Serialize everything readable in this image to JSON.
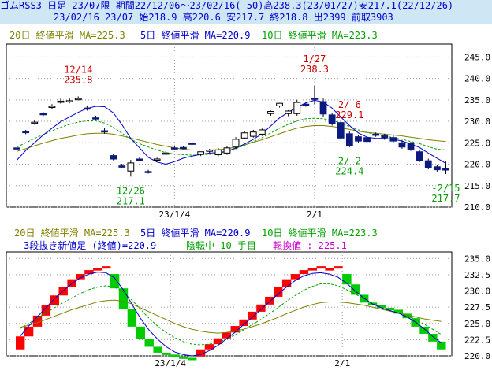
{
  "header": {
    "line1": "ゴムRSS3 日足 23/07限 期間22/12/06～23/02/16( 50)高238.3(23/01/27)安217.1(22/12/26)",
    "line2": "23/02/16 23/07 始218.9 高220.6 安217.7 終218.8 出2399 前取3903"
  },
  "colors": {
    "accent_blue": "#0000cc",
    "candle_up": "#ffffff",
    "candle_down": "#0a1a80",
    "ma20": "#808000",
    "ma5": "#0000cc",
    "ma10": "#00a000",
    "brick_up": "#ff0000",
    "brick_down": "#00cc00",
    "label_red": "#cc0000",
    "label_green": "#009900"
  },
  "chart_data": [
    {
      "type": "candlestick",
      "legend": {
        "ma20": "20日 終値平滑 MA=225.3",
        "ma5": "5日 終値平滑 MA=220.9",
        "ma10": "10日 終値平滑 MA=223.3"
      },
      "ylim": [
        210,
        248
      ],
      "yticks": [
        "245.0",
        "240.0",
        "235.0",
        "230.0",
        "225.0",
        "220.0",
        "215.0",
        "210.0"
      ],
      "xtick_labels": [
        {
          "index": 18,
          "label": "23/1/4"
        },
        {
          "index": 34,
          "label": "2/1"
        }
      ],
      "candles": [
        {
          "o": 223.8,
          "h": 224.2,
          "c": 223.6,
          "l": 223.4
        },
        {
          "o": 227.6,
          "h": 228.0,
          "c": 227.4,
          "l": 227.0
        },
        {
          "o": 229.6,
          "h": 230.2,
          "c": 229.8,
          "l": 229.2
        },
        {
          "o": 231.8,
          "h": 232.2,
          "c": 231.6,
          "l": 231.2
        },
        {
          "o": 233.3,
          "h": 234.0,
          "c": 233.5,
          "l": 232.9
        },
        {
          "o": 234.6,
          "h": 235.3,
          "c": 234.7,
          "l": 234.1
        },
        {
          "o": 234.6,
          "h": 235.4,
          "c": 234.8,
          "l": 234.2
        },
        {
          "o": 235.2,
          "h": 235.8,
          "c": 235.3,
          "l": 234.9
        },
        {
          "o": 233.1,
          "h": 233.7,
          "c": 232.9,
          "l": 232.5
        },
        {
          "o": 230.8,
          "h": 231.3,
          "c": 230.6,
          "l": 230.2
        },
        {
          "o": 227.8,
          "h": 228.4,
          "c": 227.5,
          "l": 227.1
        },
        {
          "o": 222.0,
          "h": 222.3,
          "c": 221.2,
          "l": 220.9
        },
        {
          "o": 219.6,
          "h": 220.1,
          "c": 219.3,
          "l": 219.0
        },
        {
          "o": 218.4,
          "h": 221.0,
          "c": 220.3,
          "l": 217.1
        },
        {
          "o": 221.2,
          "h": 221.6,
          "c": 221.0,
          "l": 220.7
        },
        {
          "o": 218.3,
          "h": 218.7,
          "c": 218.1,
          "l": 217.8
        },
        {
          "o": 221.0,
          "h": 221.5,
          "c": 221.2,
          "l": 220.6
        },
        {
          "o": 222.5,
          "h": 223.0,
          "c": 222.6,
          "l": 222.2
        },
        {
          "o": 223.8,
          "h": 224.2,
          "c": 223.7,
          "l": 223.3
        },
        {
          "o": 223.9,
          "h": 224.3,
          "c": 223.8,
          "l": 223.5
        },
        {
          "o": 224.9,
          "h": 225.3,
          "c": 224.8,
          "l": 224.4
        },
        {
          "o": 222.3,
          "h": 222.8,
          "c": 222.9,
          "l": 221.9
        },
        {
          "o": 223.0,
          "h": 223.6,
          "c": 223.3,
          "l": 222.6
        },
        {
          "o": 222.2,
          "h": 223.8,
          "c": 223.3,
          "l": 221.8
        },
        {
          "o": 222.6,
          "h": 224.2,
          "c": 223.8,
          "l": 222.2
        },
        {
          "o": 224.0,
          "h": 226.3,
          "c": 225.8,
          "l": 223.5
        },
        {
          "o": 226.1,
          "h": 227.7,
          "c": 227.3,
          "l": 225.8
        },
        {
          "o": 226.5,
          "h": 228.0,
          "c": 227.5,
          "l": 226.2
        },
        {
          "o": 227.0,
          "h": 228.3,
          "c": 228.0,
          "l": 226.6
        },
        {
          "o": 231.8,
          "h": 232.5,
          "c": 232.3,
          "l": 231.3
        },
        {
          "o": 233.6,
          "h": 234.3,
          "c": 234.2,
          "l": 233.2
        },
        {
          "o": 231.8,
          "h": 232.6,
          "c": 232.4,
          "l": 231.2
        },
        {
          "o": 231.8,
          "h": 235.0,
          "c": 234.4,
          "l": 231.3
        },
        {
          "o": 234.0,
          "h": 234.3,
          "c": 233.8,
          "l": 233.4
        },
        {
          "o": 235.4,
          "h": 238.3,
          "c": 235.1,
          "l": 234.0
        },
        {
          "o": 234.6,
          "h": 235.3,
          "c": 231.7,
          "l": 231.1
        },
        {
          "o": 231.5,
          "h": 232.0,
          "c": 229.5,
          "l": 229.0
        },
        {
          "o": 229.7,
          "h": 230.2,
          "c": 226.1,
          "l": 225.7
        },
        {
          "o": 227.1,
          "h": 227.6,
          "c": 224.4,
          "l": 224.0
        },
        {
          "o": 226.4,
          "h": 226.9,
          "c": 225.4,
          "l": 224.9
        },
        {
          "o": 226.2,
          "h": 226.6,
          "c": 225.3,
          "l": 224.8
        },
        {
          "o": 227.0,
          "h": 227.4,
          "c": 226.8,
          "l": 226.4
        },
        {
          "o": 226.6,
          "h": 227.1,
          "c": 226.2,
          "l": 225.7
        },
        {
          "o": 226.2,
          "h": 226.7,
          "c": 225.4,
          "l": 225.0
        },
        {
          "o": 225.0,
          "h": 225.6,
          "c": 224.0,
          "l": 223.6
        },
        {
          "o": 224.8,
          "h": 225.2,
          "c": 223.5,
          "l": 223.1
        },
        {
          "o": 222.9,
          "h": 223.4,
          "c": 220.9,
          "l": 220.5
        },
        {
          "o": 220.8,
          "h": 221.3,
          "c": 219.2,
          "l": 218.8
        },
        {
          "o": 219.4,
          "h": 219.9,
          "c": 218.7,
          "l": 218.3
        },
        {
          "o": 218.9,
          "h": 220.6,
          "c": 218.8,
          "l": 217.7
        }
      ],
      "ma5": [
        221.0,
        223.2,
        225.0,
        226.8,
        228.4,
        229.9,
        231.0,
        232.1,
        233.0,
        233.5,
        233.4,
        232.0,
        229.2,
        226.0,
        223.8,
        221.6,
        220.5,
        220.0,
        220.6,
        221.4,
        221.9,
        222.3,
        222.6,
        222.7,
        223.0,
        223.8,
        224.7,
        225.8,
        227.1,
        228.9,
        230.8,
        232.1,
        233.3,
        234.3,
        234.9,
        234.5,
        233.1,
        231.0,
        229.0,
        227.3,
        226.3,
        226.0,
        226.0,
        225.8,
        225.4,
        224.7,
        223.9,
        222.6,
        221.4,
        220.2
      ],
      "ma10": [
        224.0,
        225.0,
        226.0,
        226.9,
        227.8,
        228.6,
        229.3,
        229.8,
        230.1,
        230.1,
        229.6,
        228.6,
        227.2,
        225.8,
        224.8,
        224.0,
        223.3,
        222.7,
        222.4,
        222.2,
        222.1,
        222.2,
        222.3,
        222.5,
        222.9,
        223.6,
        224.4,
        225.3,
        226.2,
        227.3,
        228.4,
        229.3,
        230.1,
        230.6,
        230.7,
        230.6,
        230.2,
        229.6,
        228.8,
        228.0,
        227.4,
        226.9,
        226.6,
        226.2,
        225.8,
        225.3,
        224.8,
        224.1,
        223.5,
        223.3
      ],
      "ma20": [
        223.0,
        223.6,
        224.3,
        224.9,
        225.5,
        226.0,
        226.4,
        226.8,
        227.1,
        227.2,
        227.2,
        227.0,
        226.6,
        226.1,
        225.6,
        225.1,
        224.6,
        224.2,
        223.8,
        223.5,
        223.3,
        223.3,
        223.3,
        223.4,
        223.6,
        224.0,
        224.5,
        225.1,
        225.7,
        226.4,
        227.1,
        227.8,
        228.4,
        228.8,
        229.0,
        229.0,
        228.8,
        228.5,
        228.1,
        227.7,
        227.4,
        227.2,
        227.0,
        226.8,
        226.6,
        226.3,
        226.0,
        225.7,
        225.5,
        225.3
      ],
      "annotations": [
        {
          "index": 7,
          "date": "12/14",
          "value": "235.8",
          "color": "red",
          "position": "above"
        },
        {
          "index": 34,
          "date": "1/27",
          "value": "238.3",
          "color": "red",
          "position": "above"
        },
        {
          "index": 38,
          "date": "2/ 6",
          "value": "229.1",
          "color": "red",
          "position": "above"
        },
        {
          "index": 38,
          "date": "2/ 2",
          "value": "224.4",
          "color": "green",
          "position": "below"
        },
        {
          "index": 13,
          "date": "12/26",
          "value": "217.1",
          "color": "green",
          "position": "below"
        },
        {
          "index": 49,
          "date": "-2/15",
          "value": "217.7",
          "color": "green",
          "position": "below"
        }
      ]
    },
    {
      "type": "three-line-break",
      "legend": {
        "ma20": "20日 終値平滑 MA=225.3",
        "ma5": "5日 終値平滑 MA=220.9",
        "ma10": "10日 終値平滑 MA=223.3"
      },
      "info": {
        "prefix": "3段抜き新値足 (終値)=220.9",
        "status": "陰転中 10 手目",
        "reversal": "転換値 : 225.1"
      },
      "ylim": [
        220,
        236
      ],
      "yticks": [
        "235.0",
        "232.5",
        "230.0",
        "227.5",
        "225.0",
        "222.5",
        "220.0"
      ],
      "xtick_labels": [
        {
          "col": 18,
          "label": "23/1/4"
        },
        {
          "col": 38,
          "label": "2/1"
        }
      ],
      "bricks": [
        {
          "from": 221.0,
          "to": 223.0,
          "dir": "up"
        },
        {
          "from": 223.0,
          "to": 224.5,
          "dir": "up"
        },
        {
          "from": 224.5,
          "to": 226.2,
          "dir": "up"
        },
        {
          "from": 226.2,
          "to": 227.8,
          "dir": "up"
        },
        {
          "from": 227.8,
          "to": 229.3,
          "dir": "up"
        },
        {
          "from": 229.3,
          "to": 230.6,
          "dir": "up"
        },
        {
          "from": 230.6,
          "to": 231.8,
          "dir": "up"
        },
        {
          "from": 231.8,
          "to": 232.6,
          "dir": "up"
        },
        {
          "from": 232.6,
          "to": 233.2,
          "dir": "up"
        },
        {
          "from": 233.2,
          "to": 233.5,
          "dir": "up"
        },
        {
          "from": 233.5,
          "to": 233.8,
          "dir": "up"
        },
        {
          "from": 232.6,
          "to": 230.4,
          "dir": "down"
        },
        {
          "from": 230.4,
          "to": 227.2,
          "dir": "down"
        },
        {
          "from": 227.2,
          "to": 224.5,
          "dir": "down"
        },
        {
          "from": 224.5,
          "to": 222.6,
          "dir": "down"
        },
        {
          "from": 222.6,
          "to": 221.4,
          "dir": "down"
        },
        {
          "from": 221.4,
          "to": 220.5,
          "dir": "down"
        },
        {
          "from": 220.5,
          "to": 220.2,
          "dir": "down"
        },
        {
          "from": 220.2,
          "to": 219.9,
          "dir": "down"
        },
        {
          "from": 219.9,
          "to": 219.7,
          "dir": "down"
        },
        {
          "from": 219.7,
          "to": 219.5,
          "dir": "down"
        },
        {
          "from": 219.9,
          "to": 221.0,
          "dir": "up"
        },
        {
          "from": 221.0,
          "to": 221.8,
          "dir": "up"
        },
        {
          "from": 221.8,
          "to": 222.7,
          "dir": "up"
        },
        {
          "from": 222.7,
          "to": 223.6,
          "dir": "up"
        },
        {
          "from": 223.6,
          "to": 224.6,
          "dir": "up"
        },
        {
          "from": 224.6,
          "to": 225.6,
          "dir": "up"
        },
        {
          "from": 225.6,
          "to": 226.8,
          "dir": "up"
        },
        {
          "from": 226.8,
          "to": 227.9,
          "dir": "up"
        },
        {
          "from": 227.9,
          "to": 229.1,
          "dir": "up"
        },
        {
          "from": 229.1,
          "to": 230.6,
          "dir": "up"
        },
        {
          "from": 230.6,
          "to": 231.8,
          "dir": "up"
        },
        {
          "from": 231.8,
          "to": 232.6,
          "dir": "up"
        },
        {
          "from": 232.6,
          "to": 233.2,
          "dir": "up"
        },
        {
          "from": 233.2,
          "to": 233.5,
          "dir": "up"
        },
        {
          "from": 233.5,
          "to": 233.8,
          "dir": "up"
        },
        {
          "from": 233.5,
          "to": 233.2,
          "dir": "up"
        },
        {
          "from": 233.5,
          "to": 233.8,
          "dir": "up"
        },
        {
          "from": 232.6,
          "to": 231.0,
          "dir": "down"
        },
        {
          "from": 231.0,
          "to": 229.4,
          "dir": "down"
        },
        {
          "from": 229.4,
          "to": 228.2,
          "dir": "down"
        },
        {
          "from": 228.2,
          "to": 227.8,
          "dir": "down"
        },
        {
          "from": 227.8,
          "to": 227.4,
          "dir": "down"
        },
        {
          "from": 227.4,
          "to": 227.1,
          "dir": "down"
        },
        {
          "from": 227.1,
          "to": 226.5,
          "dir": "down"
        },
        {
          "from": 226.5,
          "to": 225.8,
          "dir": "down"
        },
        {
          "from": 225.8,
          "to": 224.5,
          "dir": "down"
        },
        {
          "from": 224.5,
          "to": 223.4,
          "dir": "down"
        },
        {
          "from": 223.4,
          "to": 222.2,
          "dir": "down"
        },
        {
          "from": 222.2,
          "to": 221.0,
          "dir": "down"
        }
      ],
      "ma5": [
        223.0,
        224.6,
        226.0,
        227.4,
        228.8,
        230.0,
        231.1,
        232.0,
        232.6,
        232.9,
        232.8,
        232.0,
        230.2,
        228.0,
        225.8,
        224.0,
        222.6,
        221.4,
        220.6,
        220.2,
        220.0,
        220.2,
        220.8,
        221.6,
        222.6,
        223.6,
        224.8,
        225.9,
        227.1,
        228.3,
        229.5,
        230.6,
        231.6,
        232.3,
        232.7,
        232.8,
        232.6,
        232.1,
        231.2,
        230.0,
        228.9,
        228.0,
        227.4,
        227.0,
        226.6,
        226.0,
        225.2,
        224.2,
        223.0,
        222.0
      ],
      "ma10": [
        224.2,
        225.0,
        225.8,
        226.6,
        227.4,
        228.2,
        228.9,
        229.6,
        230.2,
        230.6,
        230.8,
        230.6,
        229.8,
        228.6,
        227.2,
        225.8,
        224.6,
        223.6,
        222.8,
        222.2,
        221.8,
        221.7,
        221.8,
        222.1,
        222.6,
        223.2,
        224.0,
        224.8,
        225.6,
        226.5,
        227.4,
        228.4,
        229.3,
        230.1,
        230.7,
        231.1,
        231.1,
        230.8,
        230.2,
        229.5,
        228.8,
        228.1,
        227.5,
        227.0,
        226.6,
        226.2,
        225.6,
        224.9,
        224.1,
        223.3
      ],
      "ma20": [
        224.4,
        224.7,
        225.1,
        225.6,
        226.1,
        226.6,
        227.1,
        227.5,
        227.9,
        228.3,
        228.5,
        228.6,
        228.4,
        228.0,
        227.4,
        226.8,
        226.2,
        225.6,
        225.0,
        224.5,
        224.1,
        223.8,
        223.6,
        223.5,
        223.6,
        223.8,
        224.1,
        224.5,
        224.9,
        225.4,
        225.9,
        226.5,
        227.0,
        227.5,
        227.9,
        228.2,
        228.3,
        228.3,
        228.2,
        228.0,
        227.8,
        227.5,
        227.2,
        226.9,
        226.6,
        226.3,
        226.0,
        225.7,
        225.5,
        225.3
      ]
    }
  ]
}
